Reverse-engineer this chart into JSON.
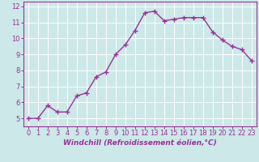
{
  "x": [
    0,
    1,
    2,
    3,
    4,
    5,
    6,
    7,
    8,
    9,
    10,
    11,
    12,
    13,
    14,
    15,
    16,
    17,
    18,
    19,
    20,
    21,
    22,
    23
  ],
  "y": [
    5.0,
    5.0,
    5.8,
    5.4,
    5.4,
    6.4,
    6.6,
    7.6,
    7.9,
    9.0,
    9.6,
    10.5,
    11.6,
    11.7,
    11.1,
    11.2,
    11.3,
    11.3,
    11.3,
    10.4,
    9.9,
    9.5,
    9.3,
    8.6
  ],
  "line_color": "#993399",
  "marker": "+",
  "marker_size": 4,
  "marker_linewidth": 1.0,
  "bg_color": "#cce8e8",
  "grid_color": "#ffffff",
  "xlabel": "Windchill (Refroidissement éolien,°C)",
  "xlim": [
    -0.5,
    23.5
  ],
  "ylim": [
    4.5,
    12.3
  ],
  "xticks": [
    0,
    1,
    2,
    3,
    4,
    5,
    6,
    7,
    8,
    9,
    10,
    11,
    12,
    13,
    14,
    15,
    16,
    17,
    18,
    19,
    20,
    21,
    22,
    23
  ],
  "yticks": [
    5,
    6,
    7,
    8,
    9,
    10,
    11,
    12
  ],
  "xlabel_fontsize": 6.5,
  "tick_fontsize": 6.0,
  "line_width": 1.0
}
